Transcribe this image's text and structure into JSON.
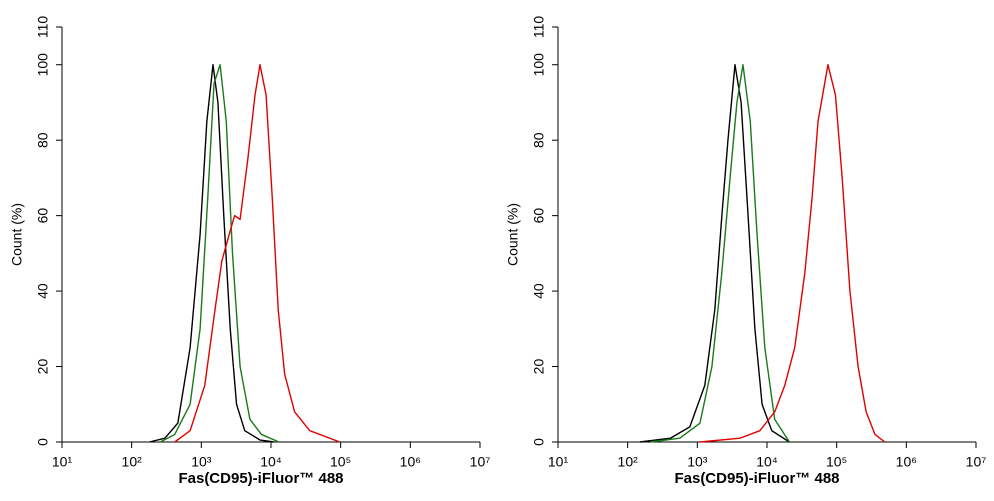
{
  "chart_data": [
    {
      "type": "line",
      "xscale": "log",
      "xlabel": "Fas(CD95)-iFluor™ 488",
      "ylabel": "Count  (%)",
      "xlim": [
        10,
        10000000
      ],
      "ylim": [
        0,
        110
      ],
      "xticks": [
        {
          "value": 10,
          "label": "10¹"
        },
        {
          "value": 100,
          "label": "10²"
        },
        {
          "value": 1000,
          "label": "10³"
        },
        {
          "value": 10000,
          "label": "10⁴"
        },
        {
          "value": 100000,
          "label": "10⁵"
        },
        {
          "value": 1000000,
          "label": "10⁶"
        },
        {
          "value": 10000000,
          "label": "10⁷"
        }
      ],
      "yticks": [
        0,
        20,
        40,
        60,
        80,
        100,
        110
      ],
      "series": [
        {
          "color": "#000000",
          "x": [
            180,
            300,
            460,
            690,
            960,
            1200,
            1470,
            1730,
            2100,
            2600,
            3200,
            4200,
            7000,
            11000
          ],
          "values": [
            0,
            1,
            5,
            25,
            55,
            85,
            100,
            90,
            60,
            30,
            10,
            3,
            0.5,
            0
          ]
        },
        {
          "color": "#1a7a1a",
          "x": [
            257,
            415,
            690,
            960,
            1240,
            1520,
            1860,
            2280,
            2800,
            3600,
            4980,
            7300,
            13000
          ],
          "values": [
            0,
            2,
            10,
            30,
            65,
            95,
            100,
            85,
            50,
            20,
            6,
            2,
            0
          ]
        },
        {
          "color": "#e00000",
          "x": [
            415,
            690,
            1120,
            1570,
            1970,
            2600,
            3000,
            3600,
            4650,
            5900,
            6950,
            8500,
            10400,
            12700,
            15700,
            21800,
            36000,
            70000,
            97000
          ],
          "values": [
            0,
            3,
            15,
            35,
            48,
            56,
            60,
            59,
            75,
            92,
            100,
            92,
            65,
            35,
            18,
            8,
            3,
            1,
            0
          ]
        }
      ]
    },
    {
      "type": "line",
      "xscale": "log",
      "xlabel": "Fas(CD95)-iFluor™ 488",
      "ylabel": "Count  (%)",
      "xlim": [
        10,
        10000000
      ],
      "ylim": [
        0,
        110
      ],
      "xticks": [
        {
          "value": 10,
          "label": "10¹"
        },
        {
          "value": 100,
          "label": "10²"
        },
        {
          "value": 1000,
          "label": "10³"
        },
        {
          "value": 10000,
          "label": "10⁴"
        },
        {
          "value": 100000,
          "label": "10⁵"
        },
        {
          "value": 1000000,
          "label": "10⁶"
        },
        {
          "value": 10000000,
          "label": "10⁷"
        }
      ],
      "yticks": [
        0,
        20,
        40,
        60,
        80,
        100,
        110
      ],
      "series": [
        {
          "color": "#000000",
          "x": [
            150,
            410,
            780,
            1280,
            1780,
            2250,
            2750,
            3470,
            4250,
            5350,
            6700,
            8500,
            11700,
            21000
          ],
          "values": [
            0,
            1,
            4,
            15,
            35,
            60,
            80,
            100,
            90,
            60,
            30,
            10,
            3,
            0
          ]
        },
        {
          "color": "#1a7a1a",
          "x": [
            210,
            560,
            1090,
            1620,
            2250,
            2950,
            3700,
            4520,
            5750,
            7200,
            9300,
            12900,
            21000
          ],
          "values": [
            0,
            1,
            5,
            20,
            45,
            70,
            90,
            100,
            85,
            55,
            25,
            6,
            0
          ]
        },
        {
          "color": "#e00000",
          "x": [
            1090,
            4080,
            7900,
            12900,
            18000,
            25000,
            35000,
            44500,
            54000,
            75000,
            96000,
            120000,
            155000,
            203000,
            265000,
            355000,
            490000
          ],
          "values": [
            0,
            1,
            3,
            8,
            15,
            25,
            45,
            65,
            85,
            100,
            92,
            70,
            40,
            20,
            8,
            2,
            0
          ]
        }
      ]
    }
  ]
}
